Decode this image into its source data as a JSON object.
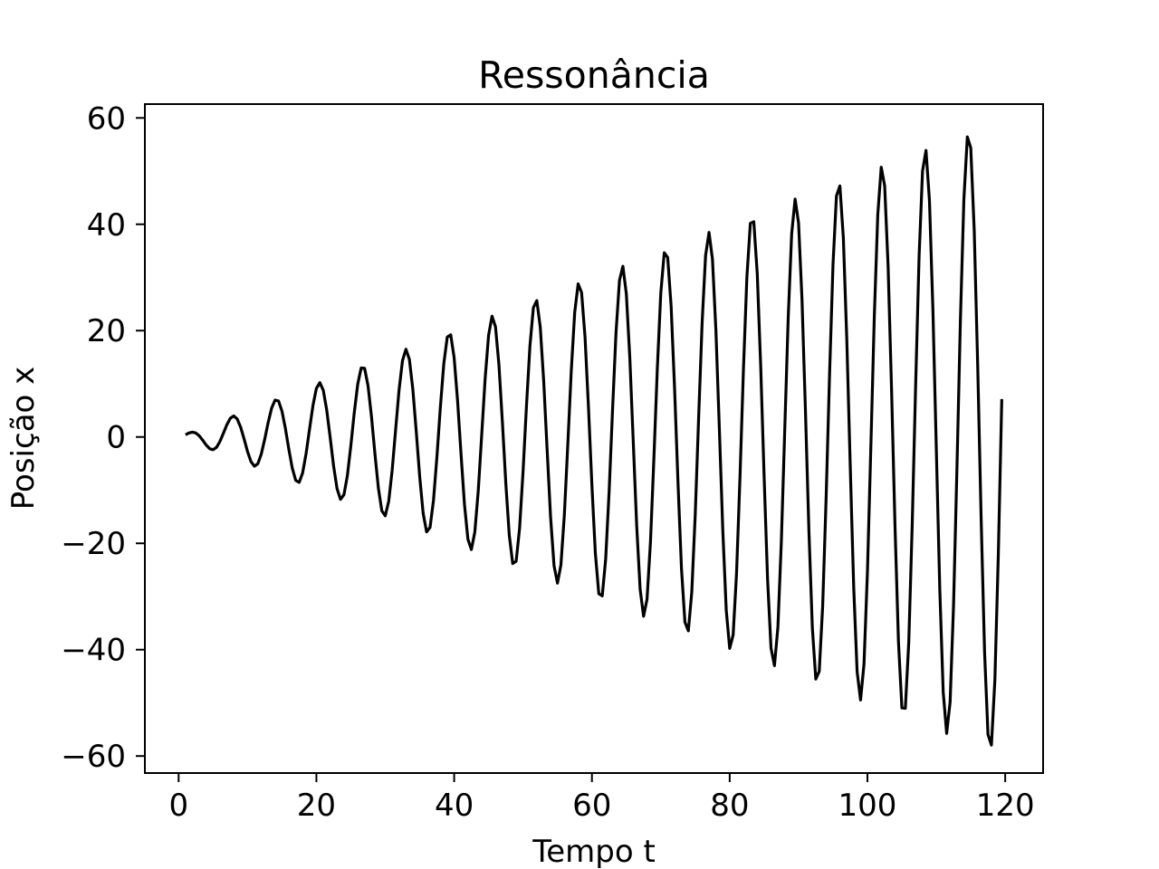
{
  "chart_data": {
    "type": "line",
    "title": "Ressonância",
    "xlabel": "Tempo t",
    "ylabel": "Posição x",
    "xlim": [
      -4.9,
      125.5
    ],
    "ylim": [
      -63.2,
      62.6
    ],
    "xticks": [
      0,
      20,
      40,
      60,
      80,
      100,
      120
    ],
    "yticks": [
      -60,
      -40,
      -20,
      0,
      20,
      40,
      60
    ],
    "xtick_labels": [
      "0",
      "20",
      "40",
      "60",
      "80",
      "100",
      "120"
    ],
    "ytick_labels": [
      "−60",
      "−40",
      "−20",
      "0",
      "20",
      "40",
      "60"
    ],
    "grid": false,
    "legend": "none",
    "line_color": "#000000",
    "series": [
      {
        "t_start": 1.0,
        "t_end": 119.5,
        "t_step": 0.5,
        "model": "x(t) = (A/(2ω)) · t · sin(ω t)",
        "A": 1.0,
        "omega": 1.0
      }
    ]
  }
}
